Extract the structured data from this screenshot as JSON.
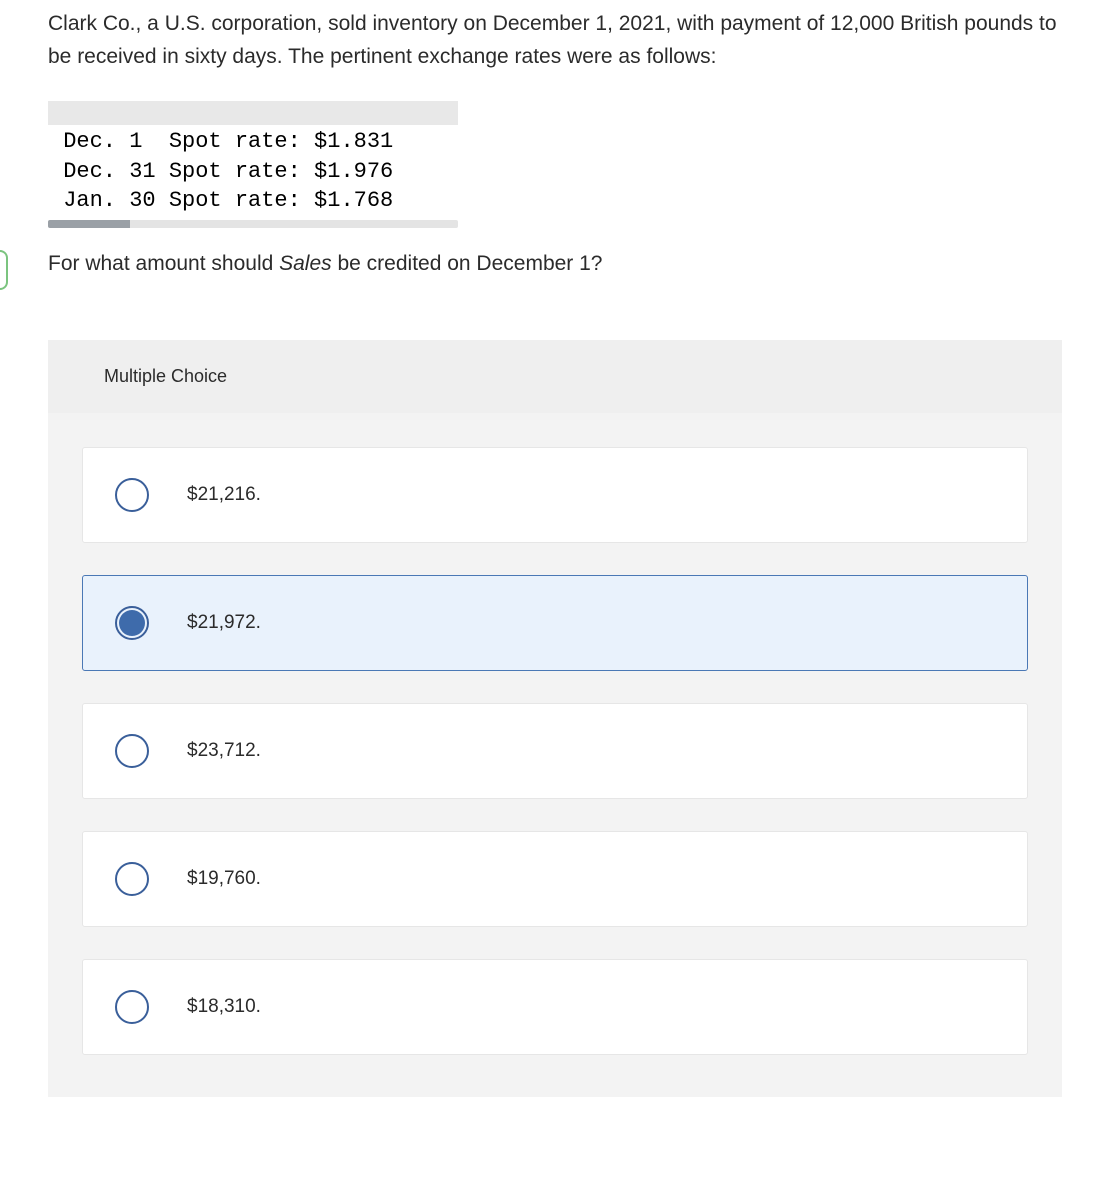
{
  "question": {
    "intro": "Clark Co., a U.S. corporation, sold inventory on December 1, 2021, with payment of 12,000 British pounds to be received in sixty days. The pertinent exchange rates were as follows:",
    "rates": [
      {
        "date": "Dec. 1 ",
        "label": "Spot rate:",
        "value": "$1.831"
      },
      {
        "date": "Dec. 31",
        "label": "Spot rate:",
        "value": "$1.976"
      },
      {
        "date": "Jan. 30",
        "label": "Spot rate:",
        "value": "$1.768"
      }
    ],
    "followup_prefix": "For what amount should ",
    "followup_italic": "Sales",
    "followup_suffix": " be credited on December 1?"
  },
  "mc": {
    "header": "Multiple Choice",
    "options": [
      {
        "label": "$21,216.",
        "selected": false
      },
      {
        "label": "$21,972.",
        "selected": true
      },
      {
        "label": "$23,712.",
        "selected": false
      },
      {
        "label": "$19,760.",
        "selected": false
      },
      {
        "label": "$18,310.",
        "selected": false
      }
    ]
  },
  "colors": {
    "selected_bg": "#e9f2fc",
    "selected_border": "#4a78b5",
    "radio_border": "#3a5f9a",
    "radio_fill": "#3e6bab",
    "option_bg": "#ffffff",
    "panel_bg": "#f3f3f3",
    "text": "#2b2b2b"
  }
}
